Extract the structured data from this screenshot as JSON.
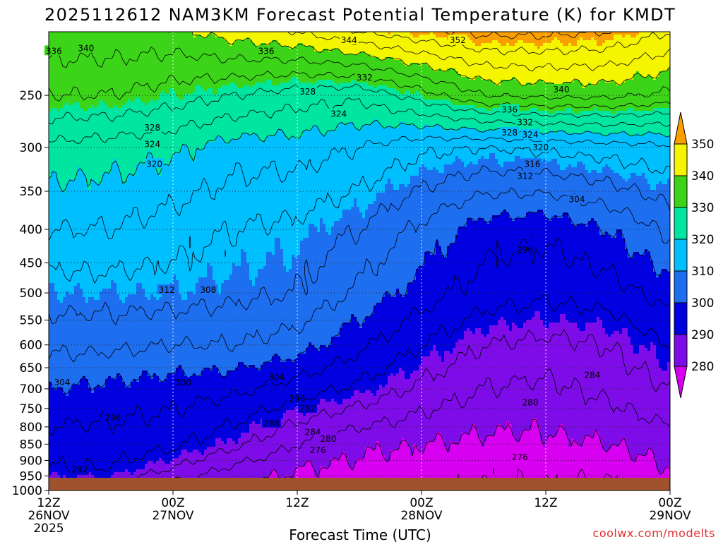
{
  "chart_data": {
    "type": "heatmap",
    "title": "2025112612 NAM3KM Forecast Potential Temperature (K) for KMDT",
    "xlabel": "Forecast Time (UTC)",
    "ylabel": "",
    "credit": "coolwx.com/modelts",
    "x_unit": "forecast hour",
    "xlim": [
      0,
      60
    ],
    "y_scale": "log",
    "ylim": [
      1000,
      200
    ],
    "y_ticks": [
      "250",
      "300",
      "350",
      "400",
      "450",
      "500",
      "550",
      "600",
      "650",
      "700",
      "750",
      "800",
      "850",
      "900",
      "950",
      "1000"
    ],
    "y_tick_values": [
      250,
      300,
      350,
      400,
      450,
      500,
      550,
      600,
      650,
      700,
      750,
      800,
      850,
      900,
      950,
      1000
    ],
    "x_ticks": [
      {
        "hour": 0,
        "l1": "12Z",
        "l2": "26NOV",
        "l3": "2025"
      },
      {
        "hour": 12,
        "l1": "00Z",
        "l2": "27NOV",
        "l3": ""
      },
      {
        "hour": 24,
        "l1": "12Z",
        "l2": "",
        "l3": ""
      },
      {
        "hour": 36,
        "l1": "00Z",
        "l2": "28NOV",
        "l3": ""
      },
      {
        "hour": 48,
        "l1": "12Z",
        "l2": "",
        "l3": ""
      },
      {
        "hour": 60,
        "l1": "00Z",
        "l2": "29NOV",
        "l3": ""
      }
    ],
    "colorbar": {
      "labels": [
        "280",
        "290",
        "300",
        "310",
        "320",
        "330",
        "340",
        "350"
      ],
      "colors": [
        "#d800f0",
        "#7d0ce8",
        "#0000e0",
        "#1e6ef0",
        "#00bfff",
        "#00e6a0",
        "#3cd418",
        "#f5f500",
        "#f9a000"
      ]
    },
    "level_colors": [
      {
        "below": 280,
        "color": "#d800f0"
      },
      {
        "below": 290,
        "color": "#7d0ce8"
      },
      {
        "below": 300,
        "color": "#0000e0"
      },
      {
        "below": 310,
        "color": "#1e6ef0"
      },
      {
        "below": 320,
        "color": "#00bfff"
      },
      {
        "below": 330,
        "color": "#00e6a0"
      },
      {
        "below": 340,
        "color": "#3cd418"
      },
      {
        "below": 350,
        "color": "#f5f500"
      },
      {
        "below": 9999,
        "color": "#f9a000"
      }
    ],
    "ground_color": "#a0522d",
    "surface_pressure": 1000,
    "contour_interval": 4,
    "hours": [
      0,
      6,
      12,
      18,
      24,
      30,
      36,
      42,
      48,
      54,
      60
    ],
    "pressures": [
      1000,
      925,
      850,
      700,
      600,
      500,
      400,
      300,
      250,
      200
    ],
    "theta": [
      [
        286,
        287,
        281,
        279,
        278,
        277,
        277,
        276,
        276,
        275,
        278
      ],
      [
        292,
        292,
        288,
        283,
        280,
        279,
        278,
        277,
        277,
        277,
        280
      ],
      [
        294,
        294,
        293,
        289,
        284,
        281,
        280,
        279,
        279,
        280,
        282
      ],
      [
        300,
        299,
        298,
        297,
        294,
        291,
        287,
        284,
        283,
        285,
        288
      ],
      [
        305,
        305,
        304,
        304,
        302,
        297,
        292,
        288,
        287,
        288,
        292
      ],
      [
        310,
        310,
        310,
        309,
        308,
        303,
        298,
        294,
        293,
        294,
        298
      ],
      [
        316,
        316,
        314,
        312,
        311,
        308,
        303,
        298,
        297,
        300,
        305
      ],
      [
        323,
        322,
        321,
        318,
        318,
        316,
        313,
        312,
        313,
        314,
        315
      ],
      [
        332,
        332,
        330,
        328,
        326,
        325,
        330,
        336,
        337,
        337,
        335
      ],
      [
        339,
        339,
        339,
        342,
        344,
        348,
        351,
        353,
        353,
        352,
        348
      ]
    ],
    "contour_labels": [
      {
        "text": "336",
        "hour": 0.5,
        "p": 214
      },
      {
        "text": "340",
        "hour": 3.6,
        "p": 212
      },
      {
        "text": "336",
        "hour": 21.0,
        "p": 214
      },
      {
        "text": "344",
        "hour": 29.0,
        "p": 206
      },
      {
        "text": "352",
        "hour": 39.5,
        "p": 206
      },
      {
        "text": "332",
        "hour": 30.5,
        "p": 235
      },
      {
        "text": "328",
        "hour": 25.0,
        "p": 247
      },
      {
        "text": "324",
        "hour": 28.0,
        "p": 267
      },
      {
        "text": "340",
        "hour": 49.5,
        "p": 245
      },
      {
        "text": "336",
        "hour": 44.5,
        "p": 263
      },
      {
        "text": "332",
        "hour": 46.0,
        "p": 275
      },
      {
        "text": "328",
        "hour": 44.5,
        "p": 285
      },
      {
        "text": "324",
        "hour": 46.5,
        "p": 287
      },
      {
        "text": "320",
        "hour": 47.5,
        "p": 300
      },
      {
        "text": "316",
        "hour": 46.7,
        "p": 318
      },
      {
        "text": "312",
        "hour": 46.0,
        "p": 332
      },
      {
        "text": "304",
        "hour": 51.0,
        "p": 360
      },
      {
        "text": "328",
        "hour": 10.0,
        "p": 280
      },
      {
        "text": "324",
        "hour": 10.0,
        "p": 297
      },
      {
        "text": "320",
        "hour": 10.2,
        "p": 318
      },
      {
        "text": "296",
        "hour": 46.0,
        "p": 430
      },
      {
        "text": "312",
        "hour": 11.4,
        "p": 495
      },
      {
        "text": "308",
        "hour": 15.4,
        "p": 495
      },
      {
        "text": "284",
        "hour": 52.5,
        "p": 667
      },
      {
        "text": "300",
        "hour": 13.0,
        "p": 685
      },
      {
        "text": "304",
        "hour": 22.0,
        "p": 672
      },
      {
        "text": "296",
        "hour": 24.0,
        "p": 725
      },
      {
        "text": "292",
        "hour": 25.0,
        "p": 750
      },
      {
        "text": "280",
        "hour": 46.5,
        "p": 735
      },
      {
        "text": "288",
        "hour": 21.5,
        "p": 790
      },
      {
        "text": "284",
        "hour": 25.5,
        "p": 815
      },
      {
        "text": "280",
        "hour": 27.0,
        "p": 835
      },
      {
        "text": "276",
        "hour": 26.0,
        "p": 868
      },
      {
        "text": "276",
        "hour": 45.5,
        "p": 890
      },
      {
        "text": "304",
        "hour": 1.3,
        "p": 685
      },
      {
        "text": "296",
        "hour": 6.2,
        "p": 775
      },
      {
        "text": "292",
        "hour": 3.0,
        "p": 930
      }
    ]
  }
}
